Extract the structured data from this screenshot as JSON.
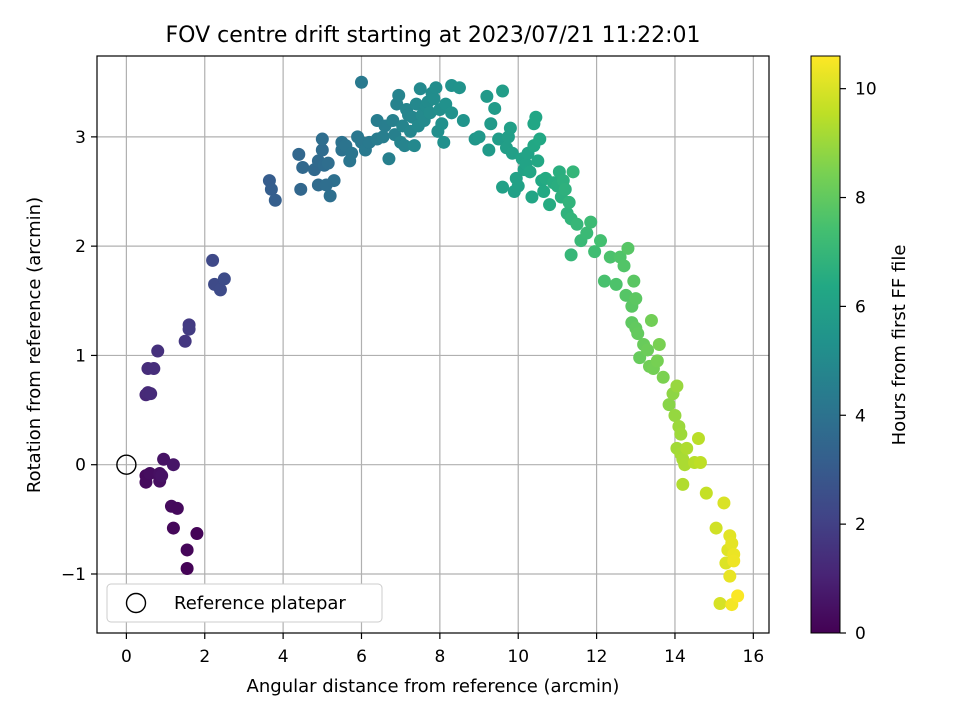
{
  "chart_data": {
    "type": "scatter",
    "title": "FOV centre drift starting at 2023/07/21 11:22:01",
    "xlabel": "Angular distance from reference (arcmin)",
    "ylabel": "Rotation from reference (arcmin)",
    "xlim": [
      -0.75,
      16.4
    ],
    "ylim": [
      -1.54,
      3.74
    ],
    "x_ticks": [
      0,
      2,
      4,
      6,
      8,
      10,
      12,
      14,
      16
    ],
    "y_ticks": [
      -1,
      0,
      1,
      2,
      3
    ],
    "x_tick_labels": [
      "0",
      "2",
      "4",
      "6",
      "8",
      "10",
      "12",
      "14",
      "16"
    ],
    "y_tick_labels": [
      "−1",
      "0",
      "1",
      "2",
      "3"
    ],
    "grid": true,
    "colorbar": {
      "label": "Hours from first FF file",
      "range": [
        0,
        10.6
      ],
      "ticks": [
        0,
        2,
        4,
        6,
        8,
        10
      ],
      "tick_labels": [
        "0",
        "2",
        "4",
        "6",
        "8",
        "10"
      ],
      "colormap": "viridis"
    },
    "legend": {
      "position": "lower-left",
      "entries": [
        "Reference platepar"
      ]
    },
    "reference_point": {
      "x": 0,
      "y": 0
    },
    "points": [
      {
        "x": 0.5,
        "y": -0.1,
        "hours": 0.25
      },
      {
        "x": 0.5,
        "y": -0.16,
        "hours": 0.3
      },
      {
        "x": 0.6,
        "y": -0.08,
        "hours": 0.35
      },
      {
        "x": 0.85,
        "y": -0.15,
        "hours": 0.4
      },
      {
        "x": 0.85,
        "y": -0.08,
        "hours": 0.45
      },
      {
        "x": 0.9,
        "y": -0.1,
        "hours": 0.5
      },
      {
        "x": 0.95,
        "y": 0.05,
        "hours": 0.55
      },
      {
        "x": 1.2,
        "y": 0.0,
        "hours": 0.6
      },
      {
        "x": 1.15,
        "y": -0.38,
        "hours": 0.3
      },
      {
        "x": 1.3,
        "y": -0.4,
        "hours": 0.25
      },
      {
        "x": 1.2,
        "y": -0.58,
        "hours": 0.2
      },
      {
        "x": 1.55,
        "y": -0.78,
        "hours": 0.15
      },
      {
        "x": 1.8,
        "y": -0.63,
        "hours": 0.1
      },
      {
        "x": 1.55,
        "y": -0.95,
        "hours": 0.05
      },
      {
        "x": 0.5,
        "y": 0.64,
        "hours": 1.2
      },
      {
        "x": 0.55,
        "y": 0.66,
        "hours": 1.25
      },
      {
        "x": 0.62,
        "y": 0.65,
        "hours": 1.3
      },
      {
        "x": 0.55,
        "y": 0.88,
        "hours": 1.35
      },
      {
        "x": 0.7,
        "y": 0.88,
        "hours": 1.4
      },
      {
        "x": 0.8,
        "y": 1.04,
        "hours": 1.45
      },
      {
        "x": 1.5,
        "y": 1.13,
        "hours": 1.7
      },
      {
        "x": 1.6,
        "y": 1.28,
        "hours": 1.8
      },
      {
        "x": 1.6,
        "y": 1.24,
        "hours": 1.85
      },
      {
        "x": 2.2,
        "y": 1.87,
        "hours": 2.3
      },
      {
        "x": 2.25,
        "y": 1.65,
        "hours": 2.35
      },
      {
        "x": 2.4,
        "y": 1.6,
        "hours": 2.4
      },
      {
        "x": 2.5,
        "y": 1.7,
        "hours": 2.45
      },
      {
        "x": 3.65,
        "y": 2.6,
        "hours": 3.1
      },
      {
        "x": 3.7,
        "y": 2.52,
        "hours": 3.15
      },
      {
        "x": 3.8,
        "y": 2.42,
        "hours": 3.2
      },
      {
        "x": 4.4,
        "y": 2.84,
        "hours": 3.5
      },
      {
        "x": 4.45,
        "y": 2.52,
        "hours": 3.5
      },
      {
        "x": 4.5,
        "y": 2.72,
        "hours": 3.55
      },
      {
        "x": 4.8,
        "y": 2.7,
        "hours": 3.6
      },
      {
        "x": 4.9,
        "y": 2.78,
        "hours": 3.65
      },
      {
        "x": 4.9,
        "y": 2.56,
        "hours": 3.7
      },
      {
        "x": 5.0,
        "y": 2.88,
        "hours": 3.75
      },
      {
        "x": 5.0,
        "y": 2.98,
        "hours": 3.8
      },
      {
        "x": 5.05,
        "y": 2.74,
        "hours": 3.75
      },
      {
        "x": 5.15,
        "y": 2.76,
        "hours": 3.8
      },
      {
        "x": 5.2,
        "y": 2.46,
        "hours": 3.85
      },
      {
        "x": 5.3,
        "y": 2.6,
        "hours": 3.9
      },
      {
        "x": 5.1,
        "y": 2.56,
        "hours": 3.8
      },
      {
        "x": 5.5,
        "y": 2.88,
        "hours": 4.0
      },
      {
        "x": 5.5,
        "y": 2.95,
        "hours": 4.0
      },
      {
        "x": 5.6,
        "y": 2.92,
        "hours": 4.05
      },
      {
        "x": 5.7,
        "y": 2.78,
        "hours": 4.1
      },
      {
        "x": 5.75,
        "y": 2.85,
        "hours": 4.1
      },
      {
        "x": 5.9,
        "y": 3.0,
        "hours": 4.2
      },
      {
        "x": 6.0,
        "y": 2.95,
        "hours": 4.25
      },
      {
        "x": 6.1,
        "y": 2.88,
        "hours": 4.3
      },
      {
        "x": 6.2,
        "y": 2.95,
        "hours": 4.3
      },
      {
        "x": 6.0,
        "y": 3.5,
        "hours": 4.3
      },
      {
        "x": 6.4,
        "y": 2.98,
        "hours": 4.4
      },
      {
        "x": 6.4,
        "y": 3.15,
        "hours": 4.45
      },
      {
        "x": 6.55,
        "y": 3.0,
        "hours": 4.5
      },
      {
        "x": 6.6,
        "y": 3.1,
        "hours": 4.5
      },
      {
        "x": 6.7,
        "y": 2.8,
        "hours": 4.55
      },
      {
        "x": 6.8,
        "y": 3.15,
        "hours": 4.6
      },
      {
        "x": 6.85,
        "y": 3.02,
        "hours": 4.6
      },
      {
        "x": 6.9,
        "y": 3.3,
        "hours": 4.65
      },
      {
        "x": 6.95,
        "y": 3.38,
        "hours": 4.7
      },
      {
        "x": 7.0,
        "y": 2.95,
        "hours": 4.7
      },
      {
        "x": 7.05,
        "y": 3.1,
        "hours": 4.75
      },
      {
        "x": 7.1,
        "y": 2.92,
        "hours": 4.75
      },
      {
        "x": 7.15,
        "y": 3.25,
        "hours": 4.8
      },
      {
        "x": 7.2,
        "y": 3.2,
        "hours": 4.8
      },
      {
        "x": 7.25,
        "y": 3.05,
        "hours": 4.85
      },
      {
        "x": 7.3,
        "y": 3.18,
        "hours": 4.85
      },
      {
        "x": 7.35,
        "y": 2.92,
        "hours": 4.9
      },
      {
        "x": 7.4,
        "y": 3.3,
        "hours": 4.9
      },
      {
        "x": 7.45,
        "y": 3.1,
        "hours": 4.95
      },
      {
        "x": 7.5,
        "y": 3.44,
        "hours": 4.95
      },
      {
        "x": 7.55,
        "y": 3.2,
        "hours": 5.0
      },
      {
        "x": 7.6,
        "y": 3.15,
        "hours": 5.0
      },
      {
        "x": 7.65,
        "y": 3.28,
        "hours": 5.05
      },
      {
        "x": 7.7,
        "y": 3.32,
        "hours": 5.05
      },
      {
        "x": 7.75,
        "y": 3.22,
        "hours": 5.1
      },
      {
        "x": 7.8,
        "y": 3.4,
        "hours": 5.1
      },
      {
        "x": 7.85,
        "y": 3.35,
        "hours": 5.15
      },
      {
        "x": 7.9,
        "y": 3.45,
        "hours": 5.15
      },
      {
        "x": 7.95,
        "y": 3.05,
        "hours": 5.2
      },
      {
        "x": 8.0,
        "y": 3.25,
        "hours": 5.2
      },
      {
        "x": 8.05,
        "y": 3.12,
        "hours": 5.25
      },
      {
        "x": 8.1,
        "y": 2.95,
        "hours": 5.25
      },
      {
        "x": 8.15,
        "y": 3.3,
        "hours": 5.3
      },
      {
        "x": 8.3,
        "y": 3.47,
        "hours": 5.35
      },
      {
        "x": 8.3,
        "y": 3.22,
        "hours": 5.35
      },
      {
        "x": 8.5,
        "y": 3.45,
        "hours": 5.4
      },
      {
        "x": 8.6,
        "y": 3.15,
        "hours": 5.45
      },
      {
        "x": 8.9,
        "y": 2.98,
        "hours": 5.55
      },
      {
        "x": 9.0,
        "y": 3.0,
        "hours": 5.6
      },
      {
        "x": 9.2,
        "y": 3.37,
        "hours": 5.65
      },
      {
        "x": 9.25,
        "y": 2.88,
        "hours": 5.7
      },
      {
        "x": 9.3,
        "y": 3.12,
        "hours": 5.7
      },
      {
        "x": 9.4,
        "y": 3.26,
        "hours": 5.75
      },
      {
        "x": 9.5,
        "y": 2.98,
        "hours": 5.8
      },
      {
        "x": 9.6,
        "y": 3.42,
        "hours": 5.85
      },
      {
        "x": 9.7,
        "y": 2.9,
        "hours": 5.9
      },
      {
        "x": 9.75,
        "y": 3.0,
        "hours": 5.9
      },
      {
        "x": 9.8,
        "y": 3.08,
        "hours": 5.95
      },
      {
        "x": 9.85,
        "y": 2.85,
        "hours": 5.95
      },
      {
        "x": 9.6,
        "y": 2.54,
        "hours": 6.0
      },
      {
        "x": 9.9,
        "y": 2.5,
        "hours": 6.0
      },
      {
        "x": 9.95,
        "y": 2.62,
        "hours": 6.05
      },
      {
        "x": 10.0,
        "y": 2.55,
        "hours": 6.05
      },
      {
        "x": 10.1,
        "y": 2.8,
        "hours": 6.1
      },
      {
        "x": 10.15,
        "y": 2.7,
        "hours": 6.1
      },
      {
        "x": 10.2,
        "y": 2.75,
        "hours": 6.15
      },
      {
        "x": 10.25,
        "y": 2.85,
        "hours": 6.15
      },
      {
        "x": 10.3,
        "y": 2.68,
        "hours": 6.2
      },
      {
        "x": 10.35,
        "y": 2.45,
        "hours": 6.2
      },
      {
        "x": 10.4,
        "y": 3.12,
        "hours": 6.25
      },
      {
        "x": 10.45,
        "y": 3.18,
        "hours": 6.25
      },
      {
        "x": 10.4,
        "y": 2.92,
        "hours": 6.3
      },
      {
        "x": 10.5,
        "y": 2.78,
        "hours": 6.3
      },
      {
        "x": 10.55,
        "y": 2.98,
        "hours": 6.35
      },
      {
        "x": 10.6,
        "y": 2.6,
        "hours": 6.35
      },
      {
        "x": 10.65,
        "y": 2.5,
        "hours": 6.4
      },
      {
        "x": 10.7,
        "y": 2.62,
        "hours": 6.45
      },
      {
        "x": 10.8,
        "y": 2.38,
        "hours": 6.5
      },
      {
        "x": 10.9,
        "y": 2.58,
        "hours": 6.55
      },
      {
        "x": 11.0,
        "y": 2.55,
        "hours": 6.6
      },
      {
        "x": 11.05,
        "y": 2.68,
        "hours": 6.65
      },
      {
        "x": 11.1,
        "y": 2.45,
        "hours": 6.7
      },
      {
        "x": 11.15,
        "y": 2.6,
        "hours": 6.7
      },
      {
        "x": 11.2,
        "y": 2.52,
        "hours": 6.75
      },
      {
        "x": 11.25,
        "y": 2.3,
        "hours": 6.8
      },
      {
        "x": 11.3,
        "y": 2.4,
        "hours": 6.85
      },
      {
        "x": 11.35,
        "y": 2.25,
        "hours": 6.9
      },
      {
        "x": 11.4,
        "y": 2.68,
        "hours": 6.95
      },
      {
        "x": 11.5,
        "y": 2.2,
        "hours": 7.0
      },
      {
        "x": 11.35,
        "y": 1.92,
        "hours": 7.0
      },
      {
        "x": 11.6,
        "y": 2.05,
        "hours": 7.1
      },
      {
        "x": 11.75,
        "y": 2.12,
        "hours": 7.15
      },
      {
        "x": 11.85,
        "y": 2.22,
        "hours": 7.2
      },
      {
        "x": 11.95,
        "y": 1.95,
        "hours": 7.3
      },
      {
        "x": 12.1,
        "y": 2.05,
        "hours": 7.4
      },
      {
        "x": 12.2,
        "y": 1.68,
        "hours": 7.5
      },
      {
        "x": 12.35,
        "y": 1.9,
        "hours": 7.55
      },
      {
        "x": 12.5,
        "y": 1.65,
        "hours": 7.6
      },
      {
        "x": 12.6,
        "y": 1.9,
        "hours": 7.65
      },
      {
        "x": 12.7,
        "y": 1.82,
        "hours": 7.7
      },
      {
        "x": 12.75,
        "y": 1.55,
        "hours": 7.75
      },
      {
        "x": 12.8,
        "y": 1.98,
        "hours": 7.8
      },
      {
        "x": 12.9,
        "y": 1.45,
        "hours": 7.85
      },
      {
        "x": 12.95,
        "y": 1.68,
        "hours": 7.85
      },
      {
        "x": 13.0,
        "y": 1.52,
        "hours": 7.9
      },
      {
        "x": 12.9,
        "y": 1.3,
        "hours": 7.95
      },
      {
        "x": 13.0,
        "y": 1.25,
        "hours": 8.0
      },
      {
        "x": 13.05,
        "y": 1.2,
        "hours": 8.05
      },
      {
        "x": 13.1,
        "y": 0.98,
        "hours": 8.1
      },
      {
        "x": 13.2,
        "y": 1.1,
        "hours": 8.15
      },
      {
        "x": 13.3,
        "y": 1.05,
        "hours": 8.2
      },
      {
        "x": 13.35,
        "y": 0.9,
        "hours": 8.3
      },
      {
        "x": 13.4,
        "y": 1.32,
        "hours": 8.3
      },
      {
        "x": 13.45,
        "y": 0.88,
        "hours": 8.35
      },
      {
        "x": 13.55,
        "y": 0.95,
        "hours": 8.4
      },
      {
        "x": 13.6,
        "y": 1.1,
        "hours": 8.45
      },
      {
        "x": 13.7,
        "y": 0.8,
        "hours": 8.5
      },
      {
        "x": 13.85,
        "y": 0.55,
        "hours": 8.7
      },
      {
        "x": 13.95,
        "y": 0.65,
        "hours": 8.8
      },
      {
        "x": 14.0,
        "y": 0.45,
        "hours": 8.9
      },
      {
        "x": 14.05,
        "y": 0.72,
        "hours": 8.95
      },
      {
        "x": 14.1,
        "y": 0.35,
        "hours": 9.0
      },
      {
        "x": 14.15,
        "y": 0.28,
        "hours": 9.05
      },
      {
        "x": 14.05,
        "y": 0.15,
        "hours": 9.1
      },
      {
        "x": 14.15,
        "y": 0.1,
        "hours": 9.15
      },
      {
        "x": 14.2,
        "y": 0.05,
        "hours": 9.2
      },
      {
        "x": 14.25,
        "y": 0.0,
        "hours": 9.25
      },
      {
        "x": 14.3,
        "y": 0.15,
        "hours": 9.3
      },
      {
        "x": 14.2,
        "y": -0.18,
        "hours": 9.35
      },
      {
        "x": 14.5,
        "y": 0.02,
        "hours": 9.45
      },
      {
        "x": 14.6,
        "y": 0.24,
        "hours": 9.5
      },
      {
        "x": 14.65,
        "y": 0.02,
        "hours": 9.55
      },
      {
        "x": 14.8,
        "y": -0.26,
        "hours": 9.65
      },
      {
        "x": 15.05,
        "y": -0.58,
        "hours": 9.85
      },
      {
        "x": 15.15,
        "y": -1.27,
        "hours": 9.95
      },
      {
        "x": 15.25,
        "y": -0.35,
        "hours": 10.0
      },
      {
        "x": 15.3,
        "y": -0.9,
        "hours": 10.05
      },
      {
        "x": 15.35,
        "y": -0.78,
        "hours": 10.1
      },
      {
        "x": 15.4,
        "y": -0.65,
        "hours": 10.15
      },
      {
        "x": 15.45,
        "y": -0.72,
        "hours": 10.2
      },
      {
        "x": 15.4,
        "y": -1.02,
        "hours": 10.25
      },
      {
        "x": 15.5,
        "y": -0.82,
        "hours": 10.3
      },
      {
        "x": 15.5,
        "y": -0.88,
        "hours": 10.35
      },
      {
        "x": 15.45,
        "y": -1.28,
        "hours": 10.45
      },
      {
        "x": 15.6,
        "y": -1.2,
        "hours": 10.55
      }
    ]
  }
}
